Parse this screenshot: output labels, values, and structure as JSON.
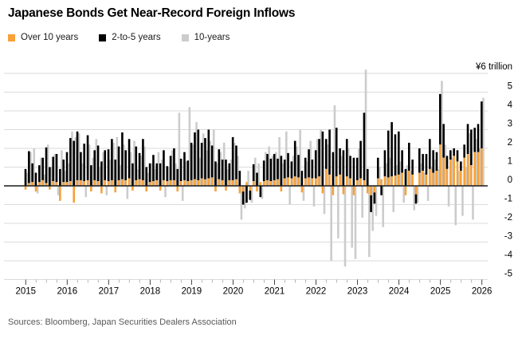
{
  "title": "Japanese Bonds Get Near-Record Foreign Inflows",
  "source": "Sources: Bloomberg, Japan Securities Dealers Association",
  "legend": [
    {
      "label": "Over 10 years",
      "color": "#f7a139"
    },
    {
      "label": "2-to-5 years",
      "color": "#000000"
    },
    {
      "label": "10-years",
      "color": "#cccccc"
    }
  ],
  "chart_data": {
    "type": "bar",
    "title": "Japanese Bonds Get Near-Record Foreign Inflows",
    "unit_label": "¥6 trillion",
    "unit_value": 6,
    "y_ticks": [
      5,
      4,
      3,
      2,
      1,
      0,
      -1,
      -2,
      -3,
      -4,
      -5
    ],
    "ylim": [
      -5,
      6
    ],
    "x_years": [
      2015,
      2016,
      2017,
      2018,
      2019,
      2020,
      2021,
      2022,
      2023,
      2024,
      2025,
      2026
    ],
    "start": "2015-01",
    "frequency": "monthly",
    "grid": "horizontal",
    "legend_position": "top",
    "layout": {
      "stacked": [
        "Over 10 years",
        "2-to-5 years"
      ],
      "overlay_offset_series": "10-years"
    },
    "series": [
      {
        "name": "Over 10 years",
        "color": "#f7a139",
        "values": [
          -0.2,
          0.15,
          0.2,
          -0.3,
          0.2,
          0.3,
          0.15,
          -0.2,
          0.25,
          0.2,
          -0.8,
          0.2,
          0.2,
          0.25,
          -0.9,
          0.3,
          0.3,
          0.25,
          0.3,
          -0.3,
          0.3,
          0.25,
          -0.4,
          0.3,
          0.25,
          0.3,
          -0.35,
          0.3,
          0.35,
          0.3,
          0.4,
          -0.25,
          0.3,
          0.35,
          0.3,
          -0.3,
          0.2,
          0.25,
          0.3,
          -0.25,
          0.3,
          0.25,
          0.3,
          0.3,
          -0.3,
          0.25,
          0.3,
          0.25,
          0.3,
          0.35,
          0.3,
          0.4,
          0.35,
          0.4,
          0.45,
          -0.3,
          0.35,
          0.3,
          -0.25,
          0.3,
          0.3,
          0.35,
          -0.4,
          -0.3,
          0.2,
          -0.25,
          0.25,
          -0.3,
          0.2,
          0.25,
          0.3,
          0.25,
          0.3,
          0.35,
          -0.3,
          0.4,
          0.45,
          0.4,
          0.5,
          0.45,
          -0.35,
          0.4,
          0.45,
          0.4,
          0.4,
          0.5,
          -0.4,
          0.9,
          0.6,
          -0.5,
          0.5,
          0.6,
          -0.45,
          0.5,
          0.4,
          -0.5,
          0.3,
          0.4,
          0.3,
          -0.4,
          -0.5,
          -0.35,
          0.4,
          0.35,
          0.5,
          0.45,
          0.5,
          0.55,
          0.6,
          0.7,
          -0.5,
          0.8,
          0.6,
          -0.45,
          0.7,
          0.8,
          0.6,
          0.9,
          0.7,
          0.8,
          2.2,
          1.5,
          0.9,
          1.4,
          1.6,
          1.3,
          0.8,
          1.5,
          1.7,
          1.1,
          1.8,
          1.8,
          2.0
        ]
      },
      {
        "name": "2-to-5 years",
        "color": "#000000",
        "values": [
          0.9,
          1.7,
          1.0,
          0.7,
          0.9,
          1.2,
          1.9,
          1.0,
          1.3,
          1.5,
          0.9,
          1.2,
          1.6,
          2.3,
          2.4,
          2.6,
          1.5,
          2.0,
          2.4,
          1.1,
          1.6,
          1.9,
          1.3,
          1.6,
          1.7,
          2.2,
          1.4,
          1.8,
          2.5,
          1.6,
          2.1,
          1.2,
          1.8,
          1.4,
          2.2,
          1.0,
          1.0,
          1.4,
          0.9,
          1.2,
          1.6,
          0.8,
          1.3,
          1.7,
          0.9,
          1.2,
          1.5,
          1.1,
          2.0,
          2.5,
          2.7,
          1.9,
          2.2,
          2.6,
          1.7,
          1.3,
          1.6,
          1.1,
          1.4,
          0.9,
          2.3,
          1.8,
          0.8,
          -0.7,
          -0.9,
          -0.5,
          0.9,
          0.7,
          -0.6,
          1.1,
          1.4,
          1.2,
          1.4,
          1.1,
          1.6,
          1.0,
          1.3,
          0.9,
          1.9,
          1.2,
          0.8,
          1.1,
          1.5,
          1.0,
          1.5,
          2.0,
          2.9,
          1.6,
          2.4,
          1.8,
          2.6,
          1.4,
          1.9,
          2.0,
          1.2,
          1.5,
          1.2,
          2.0,
          3.6,
          0.9,
          -0.9,
          -0.6,
          1.1,
          -0.5,
          1.4,
          2.5,
          2.9,
          2.2,
          2.3,
          1.2,
          0.9,
          1.5,
          0.8,
          -0.5,
          1.3,
          0.9,
          1.1,
          1.6,
          1.2,
          1.0,
          2.7,
          1.8,
          0.7,
          0.5,
          0.4,
          0.6,
          0.5,
          0.7,
          1.6,
          1.9,
          1.3,
          1.5,
          2.5
        ]
      },
      {
        "name": "10-years",
        "color": "#cccccc",
        "values": [
          0.7,
          1.8,
          2.0,
          -0.4,
          1.5,
          0.6,
          2.2,
          1.0,
          1.7,
          -0.5,
          1.9,
          0.8,
          1.2,
          2.9,
          2.6,
          2.8,
          1.2,
          -0.6,
          2.2,
          1.5,
          2.5,
          1.0,
          1.8,
          -0.5,
          1.4,
          2.3,
          2.6,
          1.1,
          2.2,
          -0.7,
          1.8,
          2.4,
          0.9,
          1.6,
          2.1,
          0.7,
          1.2,
          0.9,
          1.8,
          1.4,
          -0.6,
          1.0,
          1.9,
          1.2,
          3.9,
          -0.8,
          1.3,
          4.2,
          2.2,
          3.4,
          1.5,
          2.8,
          1.9,
          2.4,
          3.0,
          1.2,
          1.8,
          2.3,
          0.9,
          1.4,
          2.3,
          1.6,
          -1.8,
          -1.2,
          0.8,
          -0.9,
          1.5,
          1.2,
          -0.7,
          1.8,
          2.1,
          1.6,
          1.8,
          2.6,
          1.2,
          2.9,
          -1.0,
          1.6,
          2.1,
          3.0,
          -0.8,
          1.3,
          2.4,
          -1.1,
          2.5,
          3.0,
          -1.5,
          2.2,
          -4.0,
          4.3,
          -2.8,
          1.6,
          -4.3,
          2.0,
          -3.3,
          -3.9,
          2.0,
          -1.7,
          6.2,
          -3.8,
          -2.4,
          -1.6,
          1.0,
          -2.2,
          1.2,
          1.5,
          -1.4,
          1.1,
          1.3,
          -0.9,
          1.1,
          0.8,
          -1.3,
          -0.9,
          1.2,
          0.7,
          -0.8,
          1.0,
          1.4,
          0.9,
          5.6,
          2.2,
          -1.1,
          1.5,
          -2.1,
          0.8,
          -1.6,
          1.0,
          2.8,
          -1.8,
          2.5,
          2.0,
          4.7
        ]
      }
    ]
  }
}
